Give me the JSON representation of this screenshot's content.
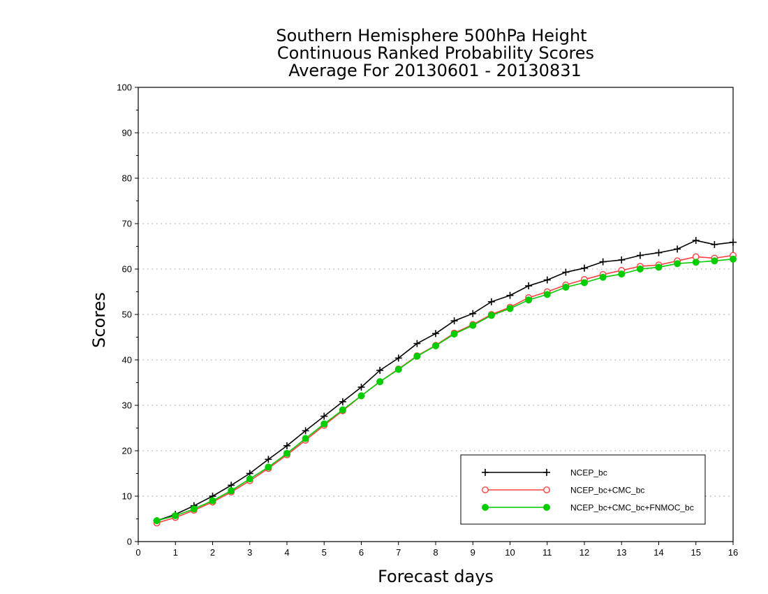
{
  "chart_data": {
    "type": "line",
    "title": [
      "Southern Hemisphere 500hPa Height",
      "Continuous Ranked Probability Scores",
      "Average For 20130601 - 20130831"
    ],
    "xlabel": "Forecast days",
    "ylabel": "Scores",
    "xlim": [
      0,
      16
    ],
    "ylim": [
      0,
      100
    ],
    "xticks": [
      0,
      1,
      2,
      3,
      4,
      5,
      6,
      7,
      8,
      9,
      10,
      11,
      12,
      13,
      14,
      15,
      16
    ],
    "yticks": [
      0,
      10,
      20,
      30,
      40,
      50,
      60,
      70,
      80,
      90,
      100
    ],
    "grid": "horizontal dotted",
    "legend_position": "bottom-right",
    "x": [
      0.5,
      1,
      1.5,
      2,
      2.5,
      3,
      3.5,
      4,
      4.5,
      5,
      5.5,
      6,
      6.5,
      7,
      7.5,
      8,
      8.5,
      9,
      9.5,
      10,
      10.5,
      11,
      11.5,
      12,
      12.5,
      13,
      13.5,
      14,
      14.5,
      15,
      15.5,
      16
    ],
    "series": [
      {
        "name": "NCEP_bc",
        "color": "#000000",
        "marker": "plus",
        "values": [
          4.6,
          6.0,
          7.9,
          10.0,
          12.4,
          15.0,
          18.1,
          21.1,
          24.4,
          27.6,
          30.8,
          34.0,
          37.7,
          40.4,
          43.6,
          45.8,
          48.6,
          50.2,
          52.8,
          54.2,
          56.3,
          57.6,
          59.3,
          60.2,
          61.6,
          62.0,
          63.0,
          63.6,
          64.4,
          66.3,
          65.4,
          65.9
        ]
      },
      {
        "name": "NCEP_bc+CMC_bc",
        "color": "#ff4040",
        "marker": "open-circle",
        "values": [
          4.1,
          5.3,
          6.9,
          8.7,
          10.9,
          13.4,
          16.1,
          19.1,
          22.3,
          25.6,
          28.8,
          32.1,
          35.2,
          38.0,
          40.9,
          43.2,
          45.9,
          47.8,
          50.0,
          51.6,
          53.7,
          55.0,
          56.5,
          57.7,
          58.8,
          59.7,
          60.6,
          60.9,
          61.8,
          62.7,
          62.4,
          63.0
        ]
      },
      {
        "name": "NCEP_bc+CMC_bc+FNMOC_bc",
        "color": "#00cc00",
        "marker": "filled-circle",
        "values": [
          4.6,
          5.7,
          7.2,
          9.0,
          11.2,
          13.8,
          16.4,
          19.4,
          22.7,
          25.9,
          29.0,
          32.1,
          35.2,
          37.9,
          40.8,
          43.1,
          45.7,
          47.6,
          49.8,
          51.3,
          53.2,
          54.4,
          56.0,
          57.0,
          58.2,
          58.9,
          60.0,
          60.4,
          61.2,
          61.5,
          61.8,
          62.2
        ]
      }
    ]
  }
}
